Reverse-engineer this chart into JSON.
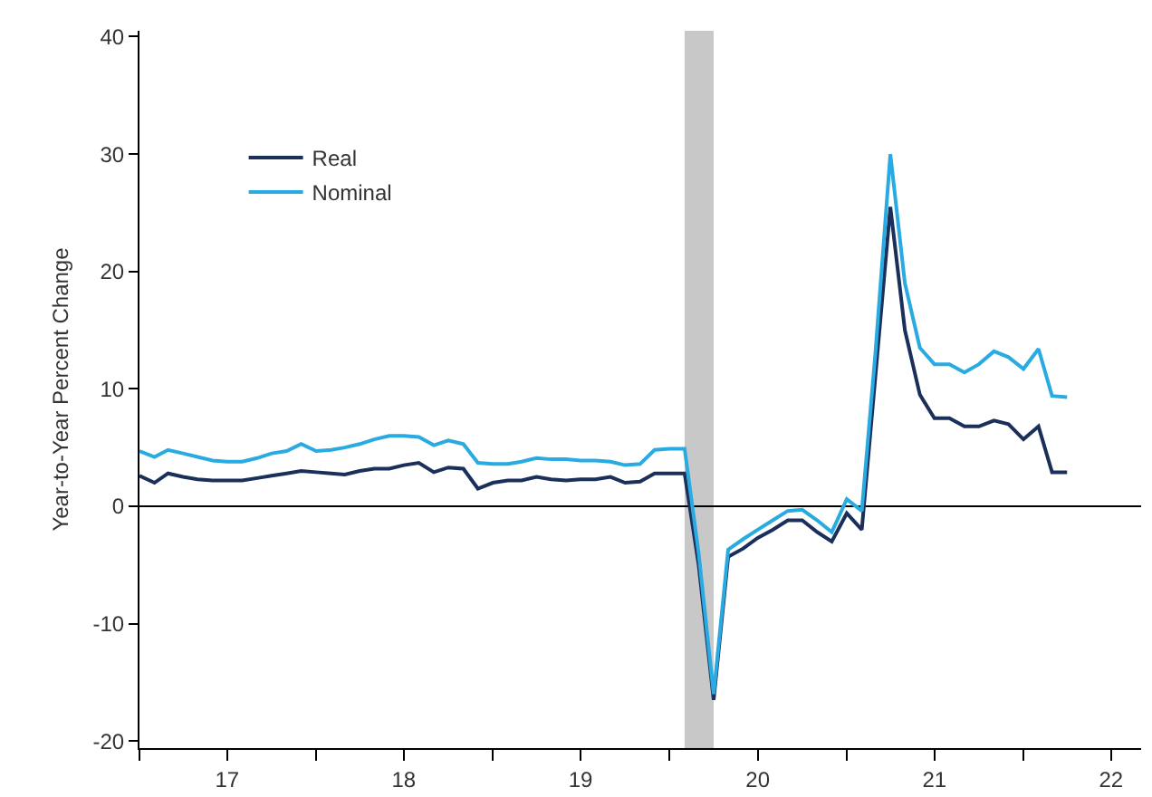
{
  "chart_data": {
    "type": "line",
    "ylabel": "Year-to-Year Percent Change",
    "x": [
      "2017-01",
      "2017-02",
      "2017-03",
      "2017-04",
      "2017-05",
      "2017-06",
      "2017-07",
      "2017-08",
      "2017-09",
      "2017-10",
      "2017-11",
      "2017-12",
      "2018-01",
      "2018-02",
      "2018-03",
      "2018-04",
      "2018-05",
      "2018-06",
      "2018-07",
      "2018-08",
      "2018-09",
      "2018-10",
      "2018-11",
      "2018-12",
      "2019-01",
      "2019-02",
      "2019-03",
      "2019-04",
      "2019-05",
      "2019-06",
      "2019-07",
      "2019-08",
      "2019-09",
      "2019-10",
      "2019-11",
      "2019-12",
      "2020-01",
      "2020-02",
      "2020-03",
      "2020-04",
      "2020-05",
      "2020-06",
      "2020-07",
      "2020-08",
      "2020-09",
      "2020-10",
      "2020-11",
      "2020-12",
      "2021-01",
      "2021-02",
      "2021-03",
      "2021-04",
      "2021-05",
      "2021-06",
      "2021-07",
      "2021-08",
      "2021-09",
      "2021-10",
      "2021-11",
      "2021-12",
      "2022-01",
      "2022-02",
      "2022-03",
      "2022-04"
    ],
    "series": [
      {
        "name": "Real",
        "color": "#1a2f5a",
        "values": [
          2.6,
          2.0,
          2.8,
          2.5,
          2.3,
          2.2,
          2.2,
          2.2,
          2.4,
          2.6,
          2.8,
          3.0,
          2.9,
          2.8,
          2.7,
          3.0,
          3.2,
          3.2,
          3.5,
          3.7,
          2.9,
          3.3,
          3.2,
          1.5,
          2.0,
          2.2,
          2.2,
          2.5,
          2.3,
          2.2,
          2.3,
          2.3,
          2.5,
          2.0,
          2.1,
          2.8,
          2.8,
          2.8,
          -5,
          -16.5,
          -4.3,
          -3.6,
          -2.7,
          -2.0,
          -1.2,
          -1.2,
          -2.2,
          -3.0,
          -0.6,
          -2.0,
          11,
          25.5,
          15,
          9.5,
          7.5,
          7.5,
          6.8,
          6.8,
          7.3,
          7.0,
          5.7,
          6.8,
          2.9,
          2.9
        ]
      },
      {
        "name": "Nominal",
        "color": "#29abe2",
        "values": [
          4.7,
          4.2,
          4.8,
          4.5,
          4.2,
          3.9,
          3.8,
          3.8,
          4.1,
          4.5,
          4.7,
          5.3,
          4.7,
          4.8,
          5.0,
          5.3,
          5.7,
          6.0,
          6.0,
          5.9,
          5.2,
          5.6,
          5.3,
          3.7,
          3.6,
          3.6,
          3.8,
          4.1,
          4.0,
          4.0,
          3.9,
          3.9,
          3.8,
          3.5,
          3.6,
          4.8,
          4.9,
          4.9,
          -4,
          -16,
          -3.7,
          -2.8,
          -2.0,
          -1.2,
          -0.4,
          -0.3,
          -1.2,
          -2.2,
          0.6,
          -0.4,
          13,
          30,
          19,
          13.5,
          12.1,
          12.1,
          11.4,
          12.1,
          13.2,
          12.7,
          11.7,
          13.4,
          9.4,
          9.3
        ]
      }
    ],
    "xlim": [
      "2017-01-01",
      "2022-09-01"
    ],
    "xticks": [
      {
        "value": "2017-01-01",
        "label": null
      },
      {
        "value": "2017-07-01",
        "label": "17"
      },
      {
        "value": "2018-01-01",
        "label": null
      },
      {
        "value": "2018-07-01",
        "label": "18"
      },
      {
        "value": "2019-01-01",
        "label": null
      },
      {
        "value": "2019-07-01",
        "label": "19"
      },
      {
        "value": "2020-01-01",
        "label": null
      },
      {
        "value": "2020-07-01",
        "label": "20"
      },
      {
        "value": "2021-01-01",
        "label": null
      },
      {
        "value": "2021-07-01",
        "label": "21"
      },
      {
        "value": "2022-01-01",
        "label": null
      },
      {
        "value": "2022-07-01",
        "label": "22"
      }
    ],
    "ylim": [
      -20.6,
      40.5
    ],
    "yticks": [
      -20,
      -10,
      0,
      10,
      20,
      30,
      40
    ],
    "ref_lines": [
      {
        "axis": "y",
        "value": 0,
        "color": "#000000"
      }
    ],
    "bands": [
      {
        "axis": "x",
        "from": "2020-02-01",
        "to": "2020-04-01",
        "color": "#c8c8c8"
      }
    ],
    "grid": false,
    "legend": "top left",
    "line_style": "solid",
    "marker": "none"
  }
}
